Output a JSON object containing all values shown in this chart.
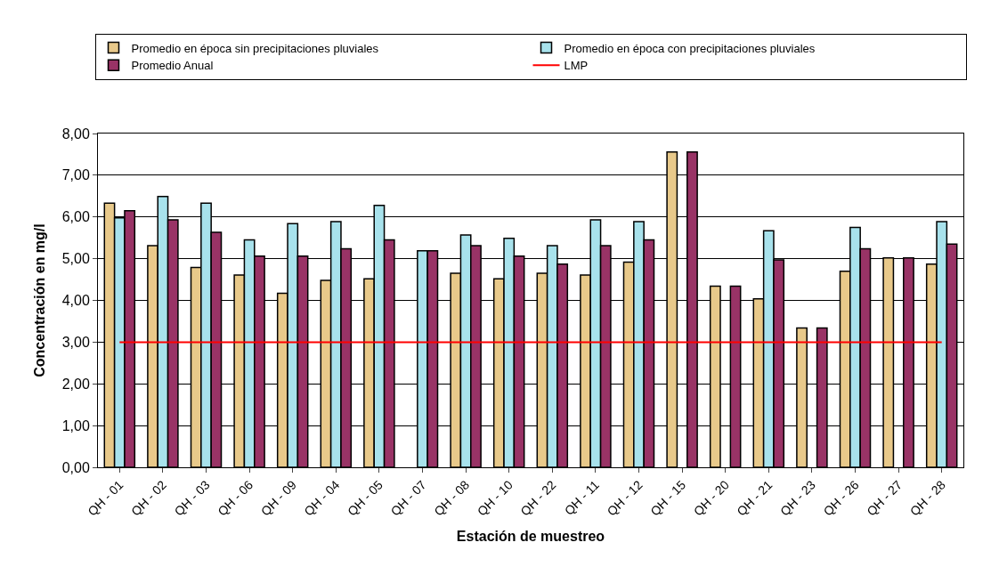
{
  "chart_data": {
    "type": "bar",
    "xlabel": "Estación de muestreo",
    "ylabel": "Concentración en mg/l",
    "categories": [
      "QH - 01",
      "QH - 02",
      "QH - 03",
      "QH - 06",
      "QH - 09",
      "QH - 04",
      "QH - 05",
      "QH - 07",
      "QH - 08",
      "QH - 10",
      "QH - 22",
      "QH - 11",
      "QH - 12",
      "QH - 15",
      "QH - 20",
      "QH - 21",
      "QH - 23",
      "QH - 26",
      "QH - 27",
      "QH - 28"
    ],
    "series": [
      {
        "name": "Promedio en época sin precipitaciones pluviales",
        "color": "#e8c98a",
        "values": [
          6.33,
          5.31,
          4.79,
          4.61,
          4.17,
          4.48,
          4.52,
          null,
          4.65,
          4.52,
          4.65,
          4.61,
          4.92,
          7.56,
          4.34,
          4.04,
          3.34,
          4.7,
          5.02,
          4.87
        ]
      },
      {
        "name": "Promedio en época con precipitaciones pluviales",
        "color": "#a8e2ec",
        "values": [
          5.98,
          6.49,
          6.33,
          5.45,
          5.84,
          5.89,
          6.28,
          5.19,
          5.57,
          5.49,
          5.31,
          5.93,
          5.89,
          null,
          null,
          5.67,
          null,
          5.75,
          null,
          5.89
        ]
      },
      {
        "name": "Promedio Anual",
        "color": "#993366",
        "values": [
          6.15,
          5.93,
          5.63,
          5.06,
          5.06,
          5.24,
          5.45,
          5.19,
          5.31,
          5.06,
          4.87,
          5.31,
          5.45,
          7.56,
          4.34,
          4.97,
          3.34,
          5.24,
          5.02,
          5.35
        ]
      },
      {
        "name": "LMP",
        "type": "line",
        "color": "#ff0000",
        "marker": "none",
        "values": [
          3,
          3,
          3,
          3,
          3,
          3,
          3,
          3,
          3,
          3,
          3,
          3,
          3,
          3,
          3,
          3,
          3,
          3,
          3,
          3
        ]
      }
    ],
    "ylim": [
      0,
      8
    ],
    "yticks": [
      {
        "value": 0,
        "label": "0,00"
      },
      {
        "value": 1,
        "label": "1,00"
      },
      {
        "value": 2,
        "label": "2,00"
      },
      {
        "value": 3,
        "label": "3,00"
      },
      {
        "value": 4,
        "label": "4,00"
      },
      {
        "value": 5,
        "label": "5,00"
      },
      {
        "value": 6,
        "label": "6,00"
      },
      {
        "value": 7,
        "label": "7,00"
      },
      {
        "value": 8,
        "label": "8,00"
      }
    ],
    "grid": "y",
    "legend": "top"
  }
}
